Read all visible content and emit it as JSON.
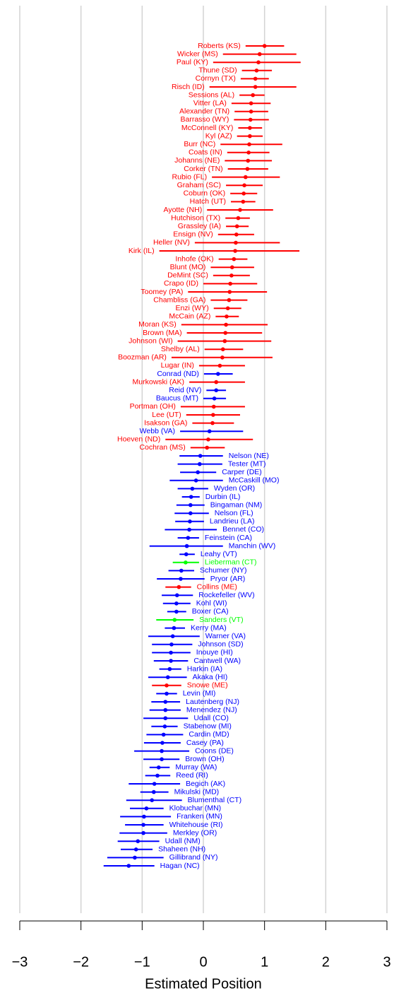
{
  "chart_data": {
    "type": "dotplot",
    "xlabel": "Estimated Position",
    "xlim": [
      -3,
      3
    ],
    "xticks": [
      {
        "value": -3,
        "label": "−3"
      },
      {
        "value": -2,
        "label": "−2"
      },
      {
        "value": -1,
        "label": "−1"
      },
      0,
      1,
      2,
      3
    ],
    "grid": true,
    "categories": [
      "Roberts (KS)",
      "Wicker (MS)",
      "Paul (KY)",
      "Thune (SD)",
      "Cornyn (TX)",
      "Risch (ID)",
      "Sessions (AL)",
      "Vitter (LA)",
      "Alexander (TN)",
      "Barrasso (WY)",
      "McConnell (KY)",
      "Kyl (AZ)",
      "Burr (NC)",
      "Coats (IN)",
      "Johanns (NE)",
      "Corker (TN)",
      "Rubio (FL)",
      "Graham (SC)",
      "Coburn (OK)",
      "Hatch (UT)",
      "Ayotte (NH)",
      "Hutchison (TX)",
      "Grassley (IA)",
      "Ensign (NV)",
      "Heller (NV)",
      "Kirk (IL)",
      "Inhofe (OK)",
      "Blunt (MO)",
      "DeMint (SC)",
      "Crapo (ID)",
      "Toomey (PA)",
      "Chambliss (GA)",
      "Enzi (WY)",
      "McCain (AZ)",
      "Moran (KS)",
      "Brown (MA)",
      "Johnson (WI)",
      "Shelby (AL)",
      "Boozman (AR)",
      "Lugar (IN)",
      "Conrad (ND)",
      "Murkowski (AK)",
      "Reid (NV)",
      "Baucus (MT)",
      "Portman (OH)",
      "Lee (UT)",
      "Isakson (GA)",
      "Webb (VA)",
      "Hoeven (ND)",
      "Cochran (MS)",
      "Nelson (NE)",
      "Tester (MT)",
      "Carper (DE)",
      "McCaskill (MO)",
      "Wyden (OR)",
      "Durbin (IL)",
      "Bingaman (NM)",
      "Nelson (FL)",
      "Landrieu (LA)",
      "Bennet (CO)",
      "Feinstein (CA)",
      "Manchin (WV)",
      "Leahy (VT)",
      "Lieberman (CT)",
      "Schumer (NY)",
      "Pryor (AR)",
      "Collins (ME)",
      "Rockefeller (WV)",
      "Kohl (WI)",
      "Boxer (CA)",
      "Sanders (VT)",
      "Kerry (MA)",
      "Warner (VA)",
      "Johnson (SD)",
      "Inouye (HI)",
      "Cantwell (WA)",
      "Harkin (IA)",
      "Akaka (HI)",
      "Snowe (ME)",
      "Levin (MI)",
      "Lautenberg (NJ)",
      "Menendez (NJ)",
      "Udall (CO)",
      "Stabenow (MI)",
      "Cardin (MD)",
      "Casey (PA)",
      "Coons (DE)",
      "Brown (OH)",
      "Murray (WA)",
      "Reed (RI)",
      "Begich (AK)",
      "Mikulski (MD)",
      "Blumenthal (CT)",
      "Klobuchar (MN)",
      "Franken (MN)",
      "Whitehouse (RI)",
      "Merkley (OR)",
      "Udall (NM)",
      "Shaheen (NH)",
      "Gillibrand (NY)",
      "Hagan (NC)"
    ],
    "values": [
      1.0,
      0.92,
      0.9,
      0.87,
      0.85,
      0.85,
      0.81,
      0.78,
      0.78,
      0.77,
      0.76,
      0.76,
      0.75,
      0.74,
      0.73,
      0.72,
      0.69,
      0.67,
      0.66,
      0.65,
      0.6,
      0.57,
      0.55,
      0.54,
      0.53,
      0.52,
      0.5,
      0.47,
      0.46,
      0.44,
      0.43,
      0.42,
      0.4,
      0.38,
      0.37,
      0.36,
      0.35,
      0.32,
      0.31,
      0.27,
      0.24,
      0.21,
      0.21,
      0.18,
      0.17,
      0.16,
      0.15,
      0.1,
      0.08,
      0.06,
      -0.05,
      -0.06,
      -0.09,
      -0.12,
      -0.18,
      -0.2,
      -0.21,
      -0.21,
      -0.22,
      -0.23,
      -0.25,
      -0.27,
      -0.28,
      -0.29,
      -0.36,
      -0.37,
      -0.4,
      -0.43,
      -0.44,
      -0.44,
      -0.47,
      -0.48,
      -0.5,
      -0.52,
      -0.53,
      -0.53,
      -0.55,
      -0.58,
      -0.6,
      -0.6,
      -0.62,
      -0.62,
      -0.62,
      -0.63,
      -0.65,
      -0.67,
      -0.68,
      -0.68,
      -0.73,
      -0.75,
      -0.8,
      -0.81,
      -0.84,
      -0.93,
      -0.97,
      -0.98,
      -0.98,
      -1.07,
      -1.1,
      -1.12,
      -1.22
    ],
    "lower": [
      0.69,
      0.32,
      0.16,
      0.63,
      0.61,
      0.1,
      0.59,
      0.46,
      0.51,
      0.5,
      0.57,
      0.55,
      0.28,
      0.39,
      0.35,
      0.4,
      0.14,
      0.37,
      0.44,
      0.45,
      0.06,
      0.36,
      0.37,
      0.24,
      -0.14,
      -0.72,
      0.25,
      0.12,
      0.16,
      0.0,
      -0.25,
      0.12,
      0.17,
      0.2,
      -0.36,
      -0.27,
      -0.42,
      0.02,
      -0.52,
      -0.07,
      0.01,
      -0.23,
      0.05,
      0.0,
      -0.37,
      -0.28,
      -0.18,
      -0.38,
      -0.62,
      -0.21,
      -0.39,
      -0.42,
      -0.38,
      -0.55,
      -0.42,
      -0.35,
      -0.44,
      -0.47,
      -0.46,
      -0.63,
      -0.42,
      -0.88,
      -0.39,
      -0.5,
      -0.57,
      -0.76,
      -0.62,
      -0.68,
      -0.66,
      -0.59,
      -0.77,
      -0.63,
      -0.9,
      -0.84,
      -0.84,
      -0.81,
      -0.72,
      -0.9,
      -0.84,
      -0.77,
      -0.85,
      -0.88,
      -0.98,
      -0.85,
      -0.93,
      -0.97,
      -1.13,
      -0.98,
      -0.88,
      -0.95,
      -1.22,
      -1.03,
      -1.26,
      -1.2,
      -1.36,
      -1.28,
      -1.37,
      -1.4,
      -1.35,
      -1.57,
      -1.63
    ],
    "upper": [
      1.32,
      1.52,
      1.59,
      1.12,
      1.07,
      1.52,
      1.0,
      1.1,
      1.06,
      1.07,
      0.96,
      0.97,
      1.29,
      1.08,
      1.12,
      1.06,
      1.25,
      0.97,
      0.88,
      0.85,
      1.14,
      0.76,
      0.74,
      0.83,
      1.25,
      1.57,
      0.72,
      0.83,
      0.76,
      0.88,
      1.04,
      0.72,
      0.62,
      0.58,
      1.05,
      0.96,
      1.11,
      0.65,
      1.13,
      0.68,
      0.48,
      0.68,
      0.37,
      0.37,
      0.68,
      0.6,
      0.5,
      0.65,
      0.81,
      0.35,
      0.32,
      0.31,
      0.21,
      0.32,
      0.08,
      -0.06,
      0.02,
      0.09,
      0.01,
      0.22,
      -0.07,
      0.32,
      -0.14,
      -0.07,
      -0.15,
      0.02,
      -0.2,
      -0.17,
      -0.21,
      -0.28,
      -0.16,
      -0.3,
      -0.06,
      -0.18,
      -0.21,
      -0.25,
      -0.36,
      -0.27,
      -0.36,
      -0.43,
      -0.38,
      -0.37,
      -0.25,
      -0.42,
      -0.33,
      -0.37,
      -0.23,
      -0.39,
      -0.55,
      -0.54,
      -0.38,
      -0.57,
      -0.35,
      -0.65,
      -0.53,
      -0.65,
      -0.59,
      -0.72,
      -0.83,
      -0.65,
      -0.8
    ],
    "colors": [
      "#ff0000",
      "#ff0000",
      "#ff0000",
      "#ff0000",
      "#ff0000",
      "#ff0000",
      "#ff0000",
      "#ff0000",
      "#ff0000",
      "#ff0000",
      "#ff0000",
      "#ff0000",
      "#ff0000",
      "#ff0000",
      "#ff0000",
      "#ff0000",
      "#ff0000",
      "#ff0000",
      "#ff0000",
      "#ff0000",
      "#ff0000",
      "#ff0000",
      "#ff0000",
      "#ff0000",
      "#ff0000",
      "#ff0000",
      "#ff0000",
      "#ff0000",
      "#ff0000",
      "#ff0000",
      "#ff0000",
      "#ff0000",
      "#ff0000",
      "#ff0000",
      "#ff0000",
      "#ff0000",
      "#ff0000",
      "#ff0000",
      "#ff0000",
      "#ff0000",
      "#0000ff",
      "#ff0000",
      "#0000ff",
      "#0000ff",
      "#ff0000",
      "#ff0000",
      "#ff0000",
      "#0000ff",
      "#ff0000",
      "#ff0000",
      "#0000ff",
      "#0000ff",
      "#0000ff",
      "#0000ff",
      "#0000ff",
      "#0000ff",
      "#0000ff",
      "#0000ff",
      "#0000ff",
      "#0000ff",
      "#0000ff",
      "#0000ff",
      "#0000ff",
      "#00ff00",
      "#0000ff",
      "#0000ff",
      "#ff0000",
      "#0000ff",
      "#0000ff",
      "#0000ff",
      "#00ff00",
      "#0000ff",
      "#0000ff",
      "#0000ff",
      "#0000ff",
      "#0000ff",
      "#0000ff",
      "#0000ff",
      "#ff0000",
      "#0000ff",
      "#0000ff",
      "#0000ff",
      "#0000ff",
      "#0000ff",
      "#0000ff",
      "#0000ff",
      "#0000ff",
      "#0000ff",
      "#0000ff",
      "#0000ff",
      "#0000ff",
      "#0000ff",
      "#0000ff",
      "#0000ff",
      "#0000ff",
      "#0000ff",
      "#0000ff",
      "#0000ff",
      "#0000ff",
      "#0000ff",
      "#0000ff"
    ]
  }
}
